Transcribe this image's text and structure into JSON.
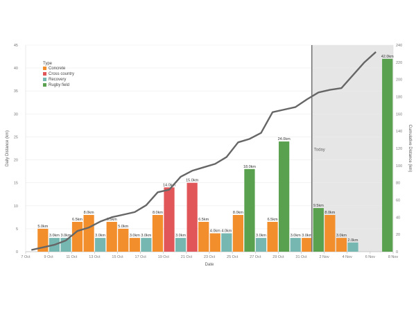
{
  "chart_data": {
    "type": "bar",
    "x_axis_title": "Date",
    "y_left_title": "Daily Distance (km)",
    "y_right_title": "Cumulative Distance (km)",
    "y_left_ticks": [
      "0",
      "5",
      "10",
      "15",
      "20",
      "25",
      "30",
      "35",
      "40",
      "45"
    ],
    "y_right_ticks": [
      "0",
      "20",
      "40",
      "60",
      "80",
      "100",
      "120",
      "140",
      "160",
      "180",
      "200",
      "220",
      "240"
    ],
    "x_ticks": [
      "7 Oct",
      "9 Oct",
      "11 Oct",
      "13 Oct",
      "15 Oct",
      "17 Oct",
      "19 Oct",
      "21 Oct",
      "23 Oct",
      "25 Oct",
      "27 Oct",
      "29 Oct",
      "31 Oct",
      "2 Nov",
      "4 Nov",
      "6 Nov",
      "8 Nov"
    ],
    "ylim_left": [
      0,
      45
    ],
    "ylim_right": [
      0,
      240
    ],
    "legend_title": "Type",
    "legend_placement": "top-left",
    "types": [
      {
        "name": "Concrete",
        "color": "#f28e2b"
      },
      {
        "name": "Cross country",
        "color": "#e15759"
      },
      {
        "name": "Recovery",
        "color": "#76b7b2"
      },
      {
        "name": "Rugby field",
        "color": "#59a14f"
      }
    ],
    "bars": [
      {
        "date": "8 Oct",
        "value": 5.0,
        "type": "Concrete",
        "label": "5.0km"
      },
      {
        "date": "9 Oct",
        "value": 3.0,
        "type": "Recovery",
        "label": "3.0km"
      },
      {
        "date": "10 Oct",
        "value": 3.0,
        "type": "Recovery",
        "label": "3.0km"
      },
      {
        "date": "11 Oct",
        "value": 6.5,
        "type": "Concrete",
        "label": "6.5km"
      },
      {
        "date": "12 Oct",
        "value": 8.0,
        "type": "Concrete",
        "label": "8.0km"
      },
      {
        "date": "13 Oct",
        "value": 3.0,
        "type": "Recovery",
        "label": "3.0km"
      },
      {
        "date": "14 Oct",
        "value": 6.5,
        "type": "Concrete",
        "label": "6.5km"
      },
      {
        "date": "15 Oct",
        "value": 5.0,
        "type": "Concrete",
        "label": "5.0km"
      },
      {
        "date": "16 Oct",
        "value": 3.0,
        "type": "Concrete",
        "label": "3.0km"
      },
      {
        "date": "17 Oct",
        "value": 3.0,
        "type": "Recovery",
        "label": "3.0km"
      },
      {
        "date": "18 Oct",
        "value": 8.0,
        "type": "Concrete",
        "label": "8.0km"
      },
      {
        "date": "19 Oct",
        "value": 14.0,
        "type": "Cross country",
        "label": "14.0km"
      },
      {
        "date": "20 Oct",
        "value": 3.0,
        "type": "Recovery",
        "label": "3.0km"
      },
      {
        "date": "21 Oct",
        "value": 15.0,
        "type": "Cross country",
        "label": "15.0km"
      },
      {
        "date": "22 Oct",
        "value": 6.5,
        "type": "Concrete",
        "label": "6.5km"
      },
      {
        "date": "23 Oct",
        "value": 4.0,
        "type": "Concrete",
        "label": "4.0km"
      },
      {
        "date": "24 Oct",
        "value": 4.0,
        "type": "Recovery",
        "label": "4.0km"
      },
      {
        "date": "25 Oct",
        "value": 8.0,
        "type": "Concrete",
        "label": "8.0km"
      },
      {
        "date": "26 Oct",
        "value": 18.0,
        "type": "Rugby field",
        "label": "18.0km"
      },
      {
        "date": "27 Oct",
        "value": 3.0,
        "type": "Recovery",
        "label": "3.0km"
      },
      {
        "date": "28 Oct",
        "value": 6.5,
        "type": "Concrete",
        "label": "6.5km"
      },
      {
        "date": "29 Oct",
        "value": 24.0,
        "type": "Rugby field",
        "label": "24.0km"
      },
      {
        "date": "30 Oct",
        "value": 3.0,
        "type": "Recovery",
        "label": "3.0km"
      },
      {
        "date": "31 Oct",
        "value": 3.0,
        "type": "Concrete",
        "label": "3.0km"
      },
      {
        "date": "1 Nov",
        "value": 9.5,
        "type": "Rugby field",
        "label": "9.5km"
      },
      {
        "date": "2 Nov",
        "value": 8.0,
        "type": "Concrete",
        "label": "8.0km"
      },
      {
        "date": "3 Nov",
        "value": 3.0,
        "type": "Concrete",
        "label": "3.0km"
      },
      {
        "date": "4 Nov",
        "value": 2.0,
        "type": "Recovery",
        "label": "2.0km"
      },
      {
        "date": "7 Nov",
        "value": 42.0,
        "type": "Rugby field",
        "label": "42.0km"
      }
    ],
    "cumulative": {
      "name": "Cumulative Distance",
      "color": "#666666",
      "points": [
        {
          "date": "7 Oct",
          "value": 2
        },
        {
          "date": "8 Oct",
          "value": 5
        },
        {
          "date": "9 Oct",
          "value": 8
        },
        {
          "date": "10 Oct",
          "value": 13
        },
        {
          "date": "11 Oct",
          "value": 24
        },
        {
          "date": "12 Oct",
          "value": 28
        },
        {
          "date": "13 Oct",
          "value": 35
        },
        {
          "date": "14 Oct",
          "value": 40
        },
        {
          "date": "15 Oct",
          "value": 43
        },
        {
          "date": "16 Oct",
          "value": 46
        },
        {
          "date": "17 Oct",
          "value": 54
        },
        {
          "date": "18 Oct",
          "value": 69
        },
        {
          "date": "19 Oct",
          "value": 72
        },
        {
          "date": "20 Oct",
          "value": 87
        },
        {
          "date": "21 Oct",
          "value": 94
        },
        {
          "date": "22 Oct",
          "value": 98
        },
        {
          "date": "23 Oct",
          "value": 102
        },
        {
          "date": "24 Oct",
          "value": 110
        },
        {
          "date": "25 Oct",
          "value": 127
        },
        {
          "date": "26 Oct",
          "value": 131
        },
        {
          "date": "27 Oct",
          "value": 138
        },
        {
          "date": "28 Oct",
          "value": 162
        },
        {
          "date": "29 Oct",
          "value": 165
        },
        {
          "date": "30 Oct",
          "value": 168
        },
        {
          "date": "31 Oct",
          "value": 177
        },
        {
          "date": "1 Nov",
          "value": 185
        },
        {
          "date": "2 Nov",
          "value": 188
        },
        {
          "date": "3 Nov",
          "value": 190
        },
        {
          "date": "4 Nov",
          "value": 205
        },
        {
          "date": "5 Nov",
          "value": 220
        },
        {
          "date": "6 Nov",
          "value": 232
        }
      ]
    },
    "today_label": "Today",
    "today_date": "31 Oct",
    "future_shaded_from": "31 Oct",
    "grid": true
  }
}
